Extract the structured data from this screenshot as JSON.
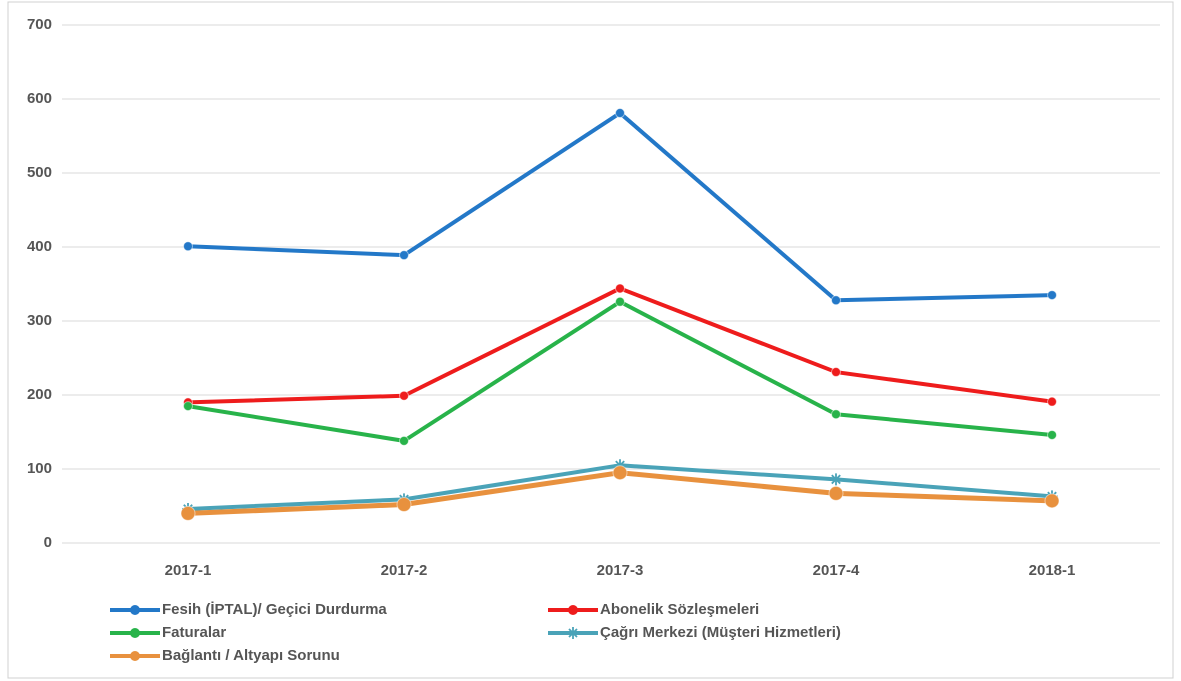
{
  "chart_data": {
    "type": "line",
    "categories": [
      "2017-1",
      "2017-2",
      "2017-3",
      "2017-4",
      "2018-1"
    ],
    "series": [
      {
        "name": "Fesih (İPTAL)/ Geçici Durdurma",
        "color": "#2378c8",
        "marker": "circle",
        "values": [
          401,
          389,
          581,
          328,
          335
        ]
      },
      {
        "name": "Abonelik Sözleşmeleri",
        "color": "#ee1c1c",
        "marker": "circle",
        "values": [
          190,
          199,
          344,
          231,
          191
        ]
      },
      {
        "name": "Faturalar",
        "color": "#28b34a",
        "marker": "circle",
        "values": [
          185,
          138,
          326,
          174,
          146
        ]
      },
      {
        "name": "Çağrı Merkezi (Müşteri Hizmetleri)",
        "color": "#4aa3b8",
        "marker": "star",
        "values": [
          46,
          59,
          105,
          86,
          63
        ]
      },
      {
        "name": "Bağlantı / Altyapı Sorunu",
        "color": "#e8913e",
        "marker": "circle",
        "values": [
          40,
          52,
          95,
          67,
          57
        ]
      }
    ],
    "ylim": [
      0,
      700
    ],
    "yticks": [
      0,
      100,
      200,
      300,
      400,
      500,
      600,
      700
    ],
    "grid": true,
    "legend": "bottom"
  }
}
